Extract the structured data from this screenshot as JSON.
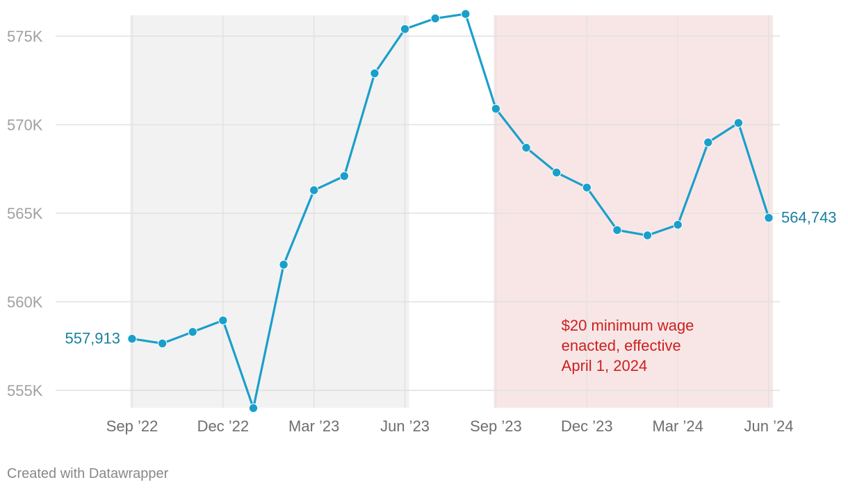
{
  "chart_data": {
    "type": "line",
    "x": [
      "2022-09",
      "2022-10",
      "2022-11",
      "2022-12",
      "2023-01",
      "2023-02",
      "2023-03",
      "2023-04",
      "2023-05",
      "2023-06",
      "2023-07",
      "2023-08",
      "2023-09",
      "2023-10",
      "2023-11",
      "2023-12",
      "2024-01",
      "2024-02",
      "2024-03",
      "2024-04",
      "2024-05",
      "2024-06"
    ],
    "series": [
      {
        "values": [
          557913,
          557650,
          558300,
          558950,
          554000,
          562100,
          566300,
          567100,
          572900,
          575400,
          576000,
          576250,
          570900,
          568700,
          567300,
          566450,
          564050,
          563750,
          564350,
          569000,
          570100,
          564743
        ]
      }
    ],
    "xticks": [
      {
        "x": "2022-09",
        "label": "Sep ’22"
      },
      {
        "x": "2022-12",
        "label": "Dec ’22"
      },
      {
        "x": "2023-03",
        "label": "Mar ’23"
      },
      {
        "x": "2023-06",
        "label": "Jun ’23"
      },
      {
        "x": "2023-09",
        "label": "Sep ’23"
      },
      {
        "x": "2023-12",
        "label": "Dec ’23"
      },
      {
        "x": "2024-03",
        "label": "Mar ’24"
      },
      {
        "x": "2024-06",
        "label": "Jun ’24"
      }
    ],
    "yticks": [
      {
        "value": 555000,
        "label": "555K"
      },
      {
        "value": 560000,
        "label": "560K"
      },
      {
        "value": 565000,
        "label": "565K"
      },
      {
        "value": 570000,
        "label": "570K"
      },
      {
        "value": 575000,
        "label": "575K"
      }
    ],
    "ylim": [
      553900,
      576250
    ],
    "grid": true,
    "line_color": "#1a9fcb",
    "start_label": "557,913",
    "end_label": "564,743",
    "shaded_ranges": [
      {
        "from": "2022-09",
        "to": "2023-06",
        "color": "#f2f2f2"
      },
      {
        "from": "2023-09",
        "to": "2024-06",
        "color": "#f8e6e6"
      }
    ],
    "annotation": {
      "lines": [
        "$20 minimum wage",
        "enacted, effective",
        "April 1, 2024"
      ],
      "color": "#cc1f1f"
    }
  },
  "footer": "Created with Datawrapper"
}
